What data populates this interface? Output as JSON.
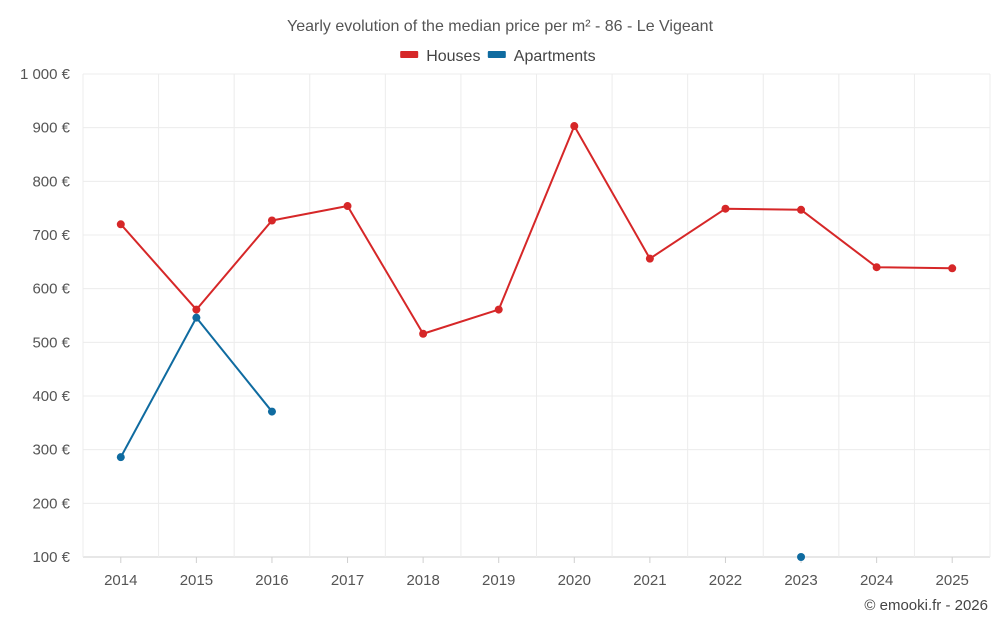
{
  "chart_data": {
    "type": "line",
    "title": "Yearly evolution of the median price per m² - 86 - Le Vigeant",
    "categories": [
      "2014",
      "2015",
      "2016",
      "2017",
      "2018",
      "2019",
      "2020",
      "2021",
      "2022",
      "2023",
      "2024",
      "2025"
    ],
    "y_ticks": [
      100,
      200,
      300,
      400,
      500,
      600,
      700,
      800,
      900,
      1000
    ],
    "y_tick_labels": [
      "100 €",
      "200 €",
      "300 €",
      "400 €",
      "500 €",
      "600 €",
      "700 €",
      "800 €",
      "900 €",
      "1 000 €"
    ],
    "ylim": [
      100,
      1000
    ],
    "grid": true,
    "legend_position": "top-center",
    "series": [
      {
        "name": "Houses",
        "color": "#d62728",
        "values": [
          720,
          561,
          727,
          754,
          516,
          561,
          903,
          656,
          749,
          747,
          640,
          638
        ]
      },
      {
        "name": "Apartments",
        "color": "#0f6ba0",
        "values": [
          286,
          546,
          371,
          null,
          null,
          null,
          null,
          null,
          null,
          100,
          null,
          null
        ]
      }
    ]
  },
  "footer": {
    "copyright": "© emooki.fr - 2026"
  }
}
